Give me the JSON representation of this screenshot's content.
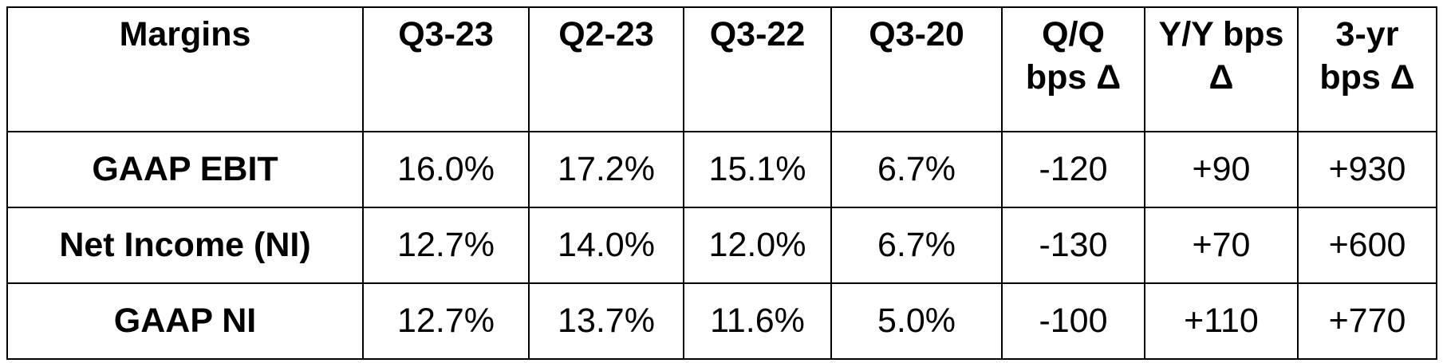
{
  "table": {
    "header": [
      "Margins",
      "Q3-23",
      "Q2-23",
      "Q3-22",
      "Q3-20",
      "Q/Q bps Δ",
      "Y/Y bps Δ",
      "3-yr bps Δ"
    ],
    "rows": [
      [
        "GAAP EBIT",
        "16.0%",
        "17.2%",
        "15.1%",
        "6.7%",
        "-120",
        "+90",
        "+930"
      ],
      [
        "Net Income (NI)",
        "12.7%",
        "14.0%",
        "12.0%",
        "6.7%",
        "-130",
        "+70",
        "+600"
      ],
      [
        "GAAP NI",
        "12.7%",
        "13.7%",
        "11.6%",
        "5.0%",
        "-100",
        "+110",
        "+770"
      ]
    ]
  }
}
